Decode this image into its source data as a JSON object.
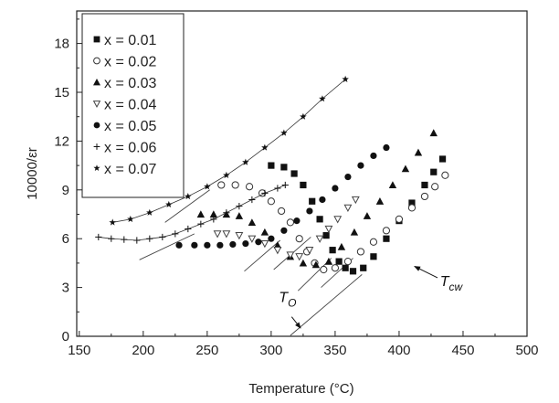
{
  "chart_data": {
    "type": "scatter",
    "title": "",
    "xlabel": "Temperature (°C)",
    "ylabel": "10000/εr",
    "xlim": [
      148,
      500
    ],
    "ylim": [
      0,
      20
    ],
    "xticks": [
      150,
      200,
      250,
      300,
      350,
      400,
      450,
      500
    ],
    "yticks": [
      0,
      3,
      6,
      9,
      12,
      15,
      18
    ],
    "legend_position": "top-left",
    "series": [
      {
        "name": "x = 0.01",
        "marker": "square",
        "points": [
          [
            300,
            10.5
          ],
          [
            310,
            10.4
          ],
          [
            318,
            10.0
          ],
          [
            325,
            9.3
          ],
          [
            332,
            8.3
          ],
          [
            338,
            7.2
          ],
          [
            343,
            6.2
          ],
          [
            348,
            5.3
          ],
          [
            353,
            4.6
          ],
          [
            358,
            4.2
          ],
          [
            364,
            4.0
          ],
          [
            372,
            4.2
          ],
          [
            380,
            4.9
          ],
          [
            390,
            6.0
          ],
          [
            400,
            7.1
          ],
          [
            410,
            8.2
          ],
          [
            420,
            9.3
          ],
          [
            427,
            10.1
          ],
          [
            434,
            10.9
          ]
        ]
      },
      {
        "name": "x = 0.02",
        "marker": "circle-open",
        "points": [
          [
            261,
            9.3
          ],
          [
            272,
            9.3
          ],
          [
            283,
            9.2
          ],
          [
            293,
            8.8
          ],
          [
            300,
            8.3
          ],
          [
            308,
            7.7
          ],
          [
            315,
            7.0
          ],
          [
            322,
            6.0
          ],
          [
            328,
            5.2
          ],
          [
            334,
            4.5
          ],
          [
            341,
            4.1
          ],
          [
            350,
            4.2
          ],
          [
            360,
            4.6
          ],
          [
            370,
            5.2
          ],
          [
            380,
            5.8
          ],
          [
            390,
            6.5
          ],
          [
            400,
            7.2
          ],
          [
            410,
            7.9
          ],
          [
            420,
            8.6
          ],
          [
            428,
            9.2
          ],
          [
            436,
            9.9
          ]
        ]
      },
      {
        "name": "x = 0.03",
        "marker": "triangle-up",
        "points": [
          [
            245,
            7.5
          ],
          [
            255,
            7.5
          ],
          [
            265,
            7.5
          ],
          [
            275,
            7.4
          ],
          [
            285,
            7.0
          ],
          [
            295,
            6.4
          ],
          [
            305,
            5.6
          ],
          [
            315,
            4.9
          ],
          [
            325,
            4.5
          ],
          [
            335,
            4.4
          ],
          [
            345,
            4.6
          ],
          [
            355,
            5.5
          ],
          [
            365,
            6.4
          ],
          [
            375,
            7.4
          ],
          [
            385,
            8.3
          ],
          [
            395,
            9.3
          ],
          [
            405,
            10.3
          ],
          [
            415,
            11.3
          ],
          [
            427,
            12.5
          ]
        ]
      },
      {
        "name": "x = 0.04",
        "marker": "triangle-down-open",
        "points": [
          [
            258,
            6.3
          ],
          [
            265,
            6.3
          ],
          [
            275,
            6.2
          ],
          [
            285,
            6.0
          ],
          [
            295,
            5.7
          ],
          [
            305,
            5.3
          ],
          [
            315,
            5.0
          ],
          [
            322,
            4.9
          ],
          [
            330,
            5.3
          ],
          [
            338,
            6.0
          ],
          [
            345,
            6.6
          ],
          [
            352,
            7.2
          ],
          [
            360,
            7.9
          ],
          [
            366,
            8.4
          ]
        ]
      },
      {
        "name": "x = 0.05",
        "marker": "circle",
        "points": [
          [
            228,
            5.6
          ],
          [
            240,
            5.6
          ],
          [
            250,
            5.6
          ],
          [
            260,
            5.6
          ],
          [
            270,
            5.65
          ],
          [
            280,
            5.7
          ],
          [
            290,
            5.8
          ],
          [
            300,
            6.0
          ],
          [
            310,
            6.5
          ],
          [
            320,
            7.1
          ],
          [
            330,
            7.7
          ],
          [
            340,
            8.4
          ],
          [
            350,
            9.1
          ],
          [
            360,
            9.8
          ],
          [
            370,
            10.5
          ],
          [
            380,
            11.1
          ],
          [
            390,
            11.6
          ]
        ]
      },
      {
        "name": "x = 0.06",
        "marker": "plus",
        "points": [
          [
            165,
            6.1
          ],
          [
            175,
            6.0
          ],
          [
            185,
            5.95
          ],
          [
            195,
            5.9
          ],
          [
            205,
            6.0
          ],
          [
            215,
            6.1
          ],
          [
            225,
            6.3
          ],
          [
            235,
            6.6
          ],
          [
            245,
            6.9
          ],
          [
            255,
            7.2
          ],
          [
            265,
            7.6
          ],
          [
            275,
            8.0
          ],
          [
            285,
            8.4
          ],
          [
            295,
            8.8
          ],
          [
            305,
            9.1
          ],
          [
            311,
            9.3
          ]
        ]
      },
      {
        "name": "x = 0.07",
        "marker": "star",
        "points": [
          [
            176,
            7.0
          ],
          [
            190,
            7.2
          ],
          [
            205,
            7.6
          ],
          [
            220,
            8.1
          ],
          [
            235,
            8.6
          ],
          [
            250,
            9.2
          ],
          [
            265,
            9.9
          ],
          [
            280,
            10.7
          ],
          [
            295,
            11.6
          ],
          [
            310,
            12.5
          ],
          [
            325,
            13.5
          ],
          [
            340,
            14.6
          ],
          [
            358,
            15.8
          ]
        ]
      }
    ],
    "fit_lines": [
      [
        [
          217,
          7.0
        ],
        [
          252,
          9.0
        ]
      ],
      [
        [
          197,
          4.7
        ],
        [
          240,
          6.3
        ]
      ],
      [
        [
          279,
          4.0
        ],
        [
          307,
          5.9
        ]
      ],
      [
        [
          302,
          4.1
        ],
        [
          331,
          6.1
        ]
      ],
      [
        [
          321,
          2.8
        ],
        [
          347,
          4.8
        ]
      ],
      [
        [
          339,
          3.0
        ],
        [
          364,
          4.8
        ]
      ],
      [
        [
          315,
          0.05
        ],
        [
          371,
          3.8
        ]
      ]
    ],
    "annotations": [
      {
        "label": "T",
        "sub": "O",
        "text_at": [
          306,
          2.1
        ],
        "arrow_from": [
          316,
          1.2
        ],
        "arrow_to": [
          323,
          0.5
        ]
      },
      {
        "label": "T",
        "sub": "cw",
        "text_at": [
          432,
          3.1
        ],
        "arrow_from": [
          430,
          3.6
        ],
        "arrow_to": [
          412,
          4.3
        ]
      }
    ]
  }
}
